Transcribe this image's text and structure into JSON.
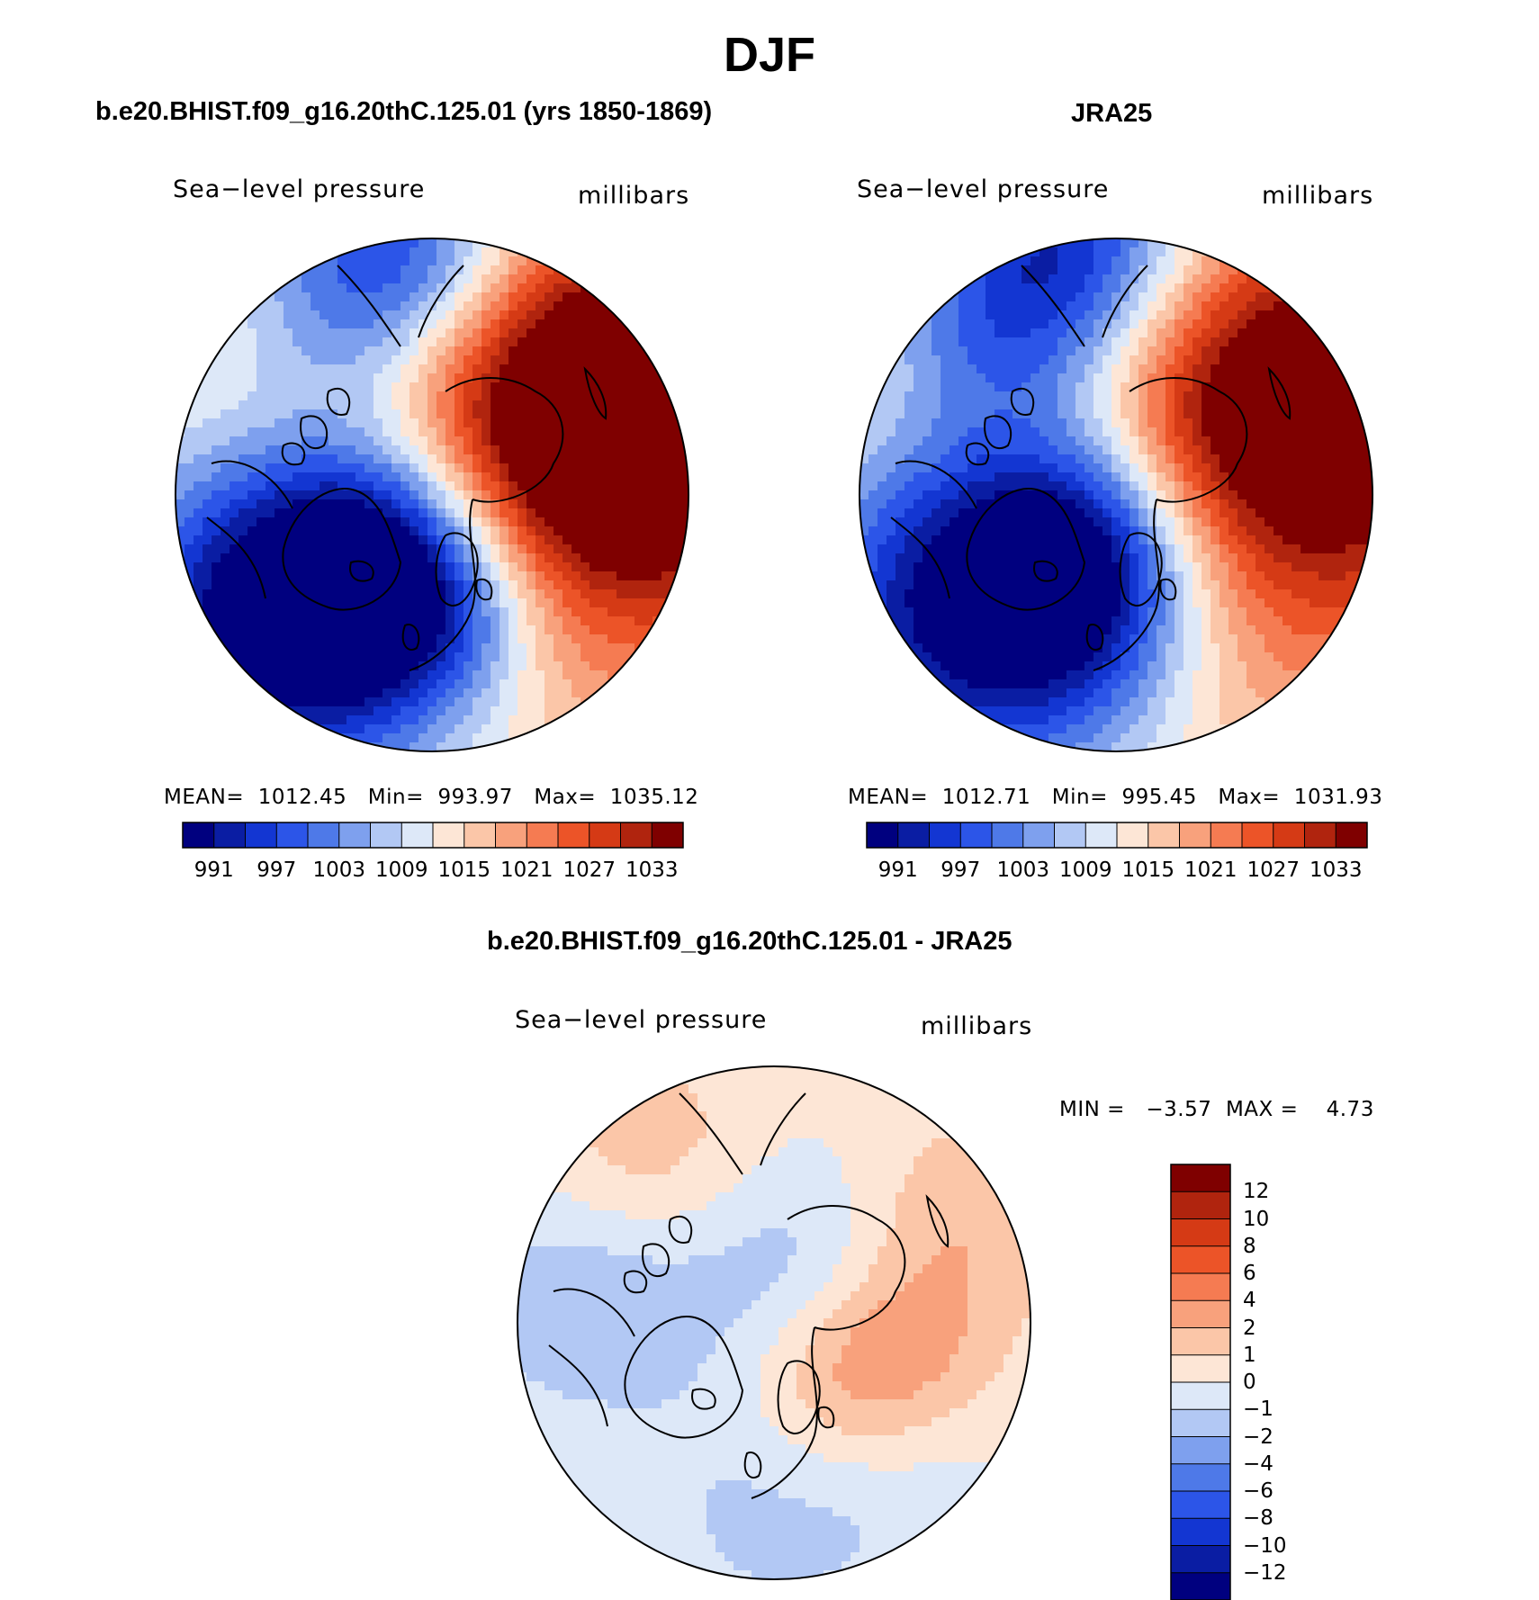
{
  "figure": {
    "title": "DJF"
  },
  "panels": [
    {
      "title": "b.e20.BHIST.f09_g16.20thC.125.01 (yrs 1850-1869)",
      "left_label": "Sea−level pressure",
      "right_label": "millibars",
      "stats": "MEAN=  1012.45   Min=  993.97   Max=  1035.12",
      "colorbar_ticks": [
        "991",
        "997",
        "1003",
        "1009",
        "1015",
        "1021",
        "1027",
        "1033"
      ]
    },
    {
      "title": "JRA25",
      "left_label": "Sea−level pressure",
      "right_label": "millibars",
      "stats": "MEAN=  1012.71   Min=  995.45   Max=  1031.93",
      "colorbar_ticks": [
        "991",
        "997",
        "1003",
        "1009",
        "1015",
        "1021",
        "1027",
        "1033"
      ]
    },
    {
      "title": "b.e20.BHIST.f09_g16.20thC.125.01 - JRA25",
      "left_label": "Sea−level pressure",
      "right_label": "millibars",
      "stats": "MIN =   −3.57  MAX =    4.73",
      "colorbar_ticks": [
        "12",
        "10",
        "8",
        "6",
        "4",
        "2",
        "1",
        "0",
        "−1",
        "−2",
        "−4",
        "−6",
        "−8",
        "−10",
        "−12"
      ]
    }
  ],
  "palettes": {
    "abs": [
      "#00007f",
      "#0a1da3",
      "#1336d2",
      "#2c55e8",
      "#4e79e8",
      "#7ea0ee",
      "#b2c8f4",
      "#dde8f8",
      "#fde6d6",
      "#fbc6a8",
      "#f8a17c",
      "#f57b52",
      "#ec5428",
      "#d53a15",
      "#b0240e",
      "#7f0000"
    ],
    "diff": [
      "#00007f",
      "#0a1da3",
      "#1336d2",
      "#2c55e8",
      "#4e79e8",
      "#7ea0ee",
      "#b2c8f4",
      "#dde8f8",
      "#fde6d6",
      "#fbc6a8",
      "#f8a17c",
      "#f57b52",
      "#ec5428",
      "#d53a15",
      "#b0240e",
      "#7f0000"
    ]
  }
}
